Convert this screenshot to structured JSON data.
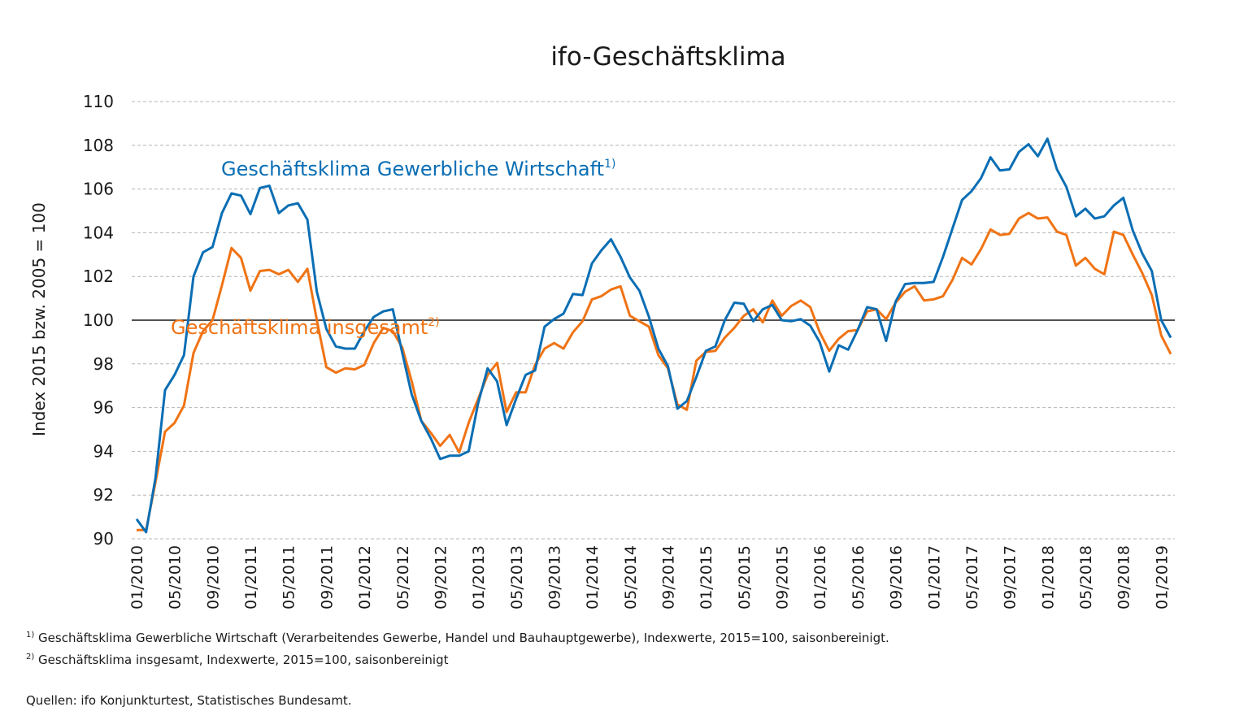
{
  "chart_data": {
    "type": "line",
    "title": "ifo-Geschäftsklima",
    "ylabel": "Index 2015 bzw. 2005 = 100",
    "xlabel": "",
    "ylim": [
      90,
      110
    ],
    "yticks": [
      90,
      92,
      94,
      96,
      98,
      100,
      102,
      104,
      106,
      108,
      110
    ],
    "grid": "horizontal dashed",
    "reference_line": 100,
    "x_start": "01/2010",
    "x_tick_labels": [
      "01/2010",
      "05/2010",
      "09/2010",
      "01/2011",
      "05/2011",
      "09/2011",
      "01/2012",
      "05/2012",
      "09/2012",
      "01/2013",
      "05/2013",
      "09/2013",
      "01/2014",
      "05/2014",
      "09/2014",
      "01/2015",
      "05/2015",
      "09/2015",
      "01/2016",
      "05/2016",
      "09/2016",
      "01/2017",
      "05/2017",
      "09/2017",
      "01/2018",
      "05/2018",
      "09/2018",
      "01/2019"
    ],
    "series": [
      {
        "name": "Geschäftsklima Gewerbliche Wirtschaft",
        "name_sup": "1)",
        "color": "#0a6eb4",
        "values": [
          90.9,
          90.3,
          92.8,
          96.8,
          97.5,
          98.4,
          102.0,
          103.1,
          103.35,
          104.9,
          105.8,
          105.7,
          104.85,
          106.05,
          106.15,
          104.9,
          105.25,
          105.35,
          104.6,
          101.3,
          99.6,
          98.8,
          98.7,
          98.7,
          99.5,
          100.15,
          100.4,
          100.5,
          98.5,
          96.6,
          95.4,
          94.6,
          93.65,
          93.8,
          93.8,
          94.0,
          96.2,
          97.8,
          97.2,
          95.2,
          96.4,
          97.5,
          97.7,
          99.7,
          100.05,
          100.3,
          101.2,
          101.15,
          102.6,
          103.2,
          103.7,
          102.9,
          101.95,
          101.35,
          100.15,
          98.7,
          97.9,
          95.95,
          96.3,
          97.4,
          98.6,
          98.8,
          100.0,
          100.8,
          100.75,
          99.95,
          100.5,
          100.7,
          100.0,
          99.95,
          100.05,
          99.75,
          99.0,
          97.65,
          98.85,
          98.65,
          99.55,
          100.6,
          100.5,
          99.05,
          100.85,
          101.65,
          101.7,
          101.7,
          101.75,
          102.9,
          104.2,
          105.5,
          105.9,
          106.5,
          107.45,
          106.85,
          106.9,
          107.7,
          108.05,
          107.5,
          108.3,
          106.9,
          106.1,
          104.75,
          105.1,
          104.65,
          104.75,
          105.25,
          105.6,
          104.1,
          103.05,
          102.25,
          100.0,
          99.2
        ]
      },
      {
        "name": "Geschäftsklima insgesamt",
        "name_sup": "2)",
        "color": "#f07314",
        "values": [
          90.4,
          90.4,
          92.6,
          94.9,
          95.3,
          96.1,
          98.5,
          99.5,
          100.0,
          101.6,
          103.3,
          102.85,
          101.35,
          102.25,
          102.3,
          102.1,
          102.3,
          101.75,
          102.35,
          100.0,
          97.85,
          97.6,
          97.8,
          97.75,
          97.95,
          98.95,
          99.65,
          99.5,
          98.75,
          97.2,
          95.4,
          94.85,
          94.25,
          94.75,
          93.95,
          95.3,
          96.4,
          97.5,
          98.05,
          95.8,
          96.7,
          96.7,
          97.95,
          98.7,
          98.95,
          98.7,
          99.45,
          99.95,
          100.95,
          101.1,
          101.4,
          101.55,
          100.2,
          99.95,
          99.7,
          98.4,
          97.8,
          96.15,
          95.9,
          98.15,
          98.55,
          98.6,
          99.2,
          99.65,
          100.2,
          100.5,
          99.9,
          100.9,
          100.2,
          100.65,
          100.9,
          100.6,
          99.45,
          98.6,
          99.15,
          99.5,
          99.55,
          100.4,
          100.5,
          100.05,
          100.8,
          101.3,
          101.55,
          100.9,
          100.95,
          101.1,
          101.85,
          102.85,
          102.55,
          103.25,
          104.15,
          103.9,
          103.95,
          104.65,
          104.9,
          104.65,
          104.7,
          104.05,
          103.9,
          102.5,
          102.85,
          102.35,
          102.1,
          104.05,
          103.9,
          103.0,
          102.15,
          101.15,
          99.3,
          98.45
        ]
      }
    ]
  },
  "footnotes": {
    "note1_sup": "1)",
    "note1_text": "Geschäftsklima Gewerbliche Wirtschaft (Verarbeitendes Gewerbe, Handel und Bauhauptgewerbe), Indexwerte, 2015=100, saisonbereinigt.",
    "note2_sup": "2)",
    "note2_text": "Geschäftsklima insgesamt, Indexwerte, 2015=100, saisonbereinigt",
    "sources": "Quellen: ifo Konjunkturtest, Statistisches Bundesamt."
  }
}
